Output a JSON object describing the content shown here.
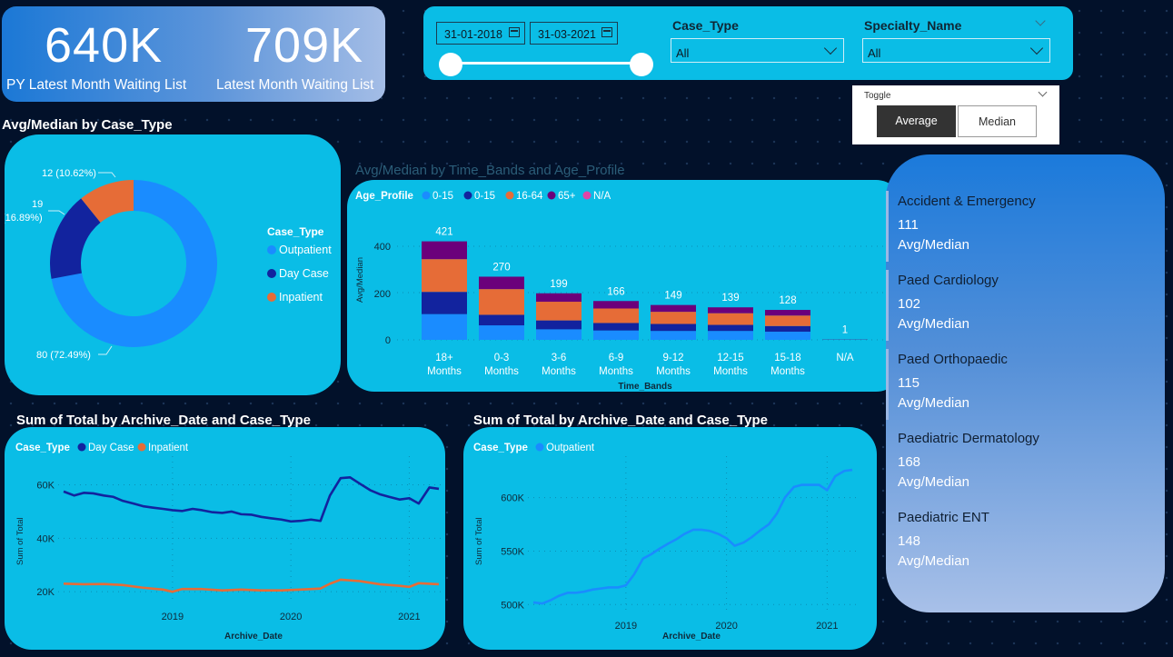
{
  "kpi": {
    "py_value": "640K",
    "py_label": "PY Latest Month Waiting List",
    "latest_value": "709K",
    "latest_label": "Latest Month Waiting List"
  },
  "filters": {
    "date_start": "31-01-2018",
    "date_end": "31-03-2021",
    "case_type_title": "Case_Type",
    "case_type_value": "All",
    "specialty_title": "Specialty_Name",
    "specialty_value": "All"
  },
  "toggle": {
    "title": "Toggle",
    "average": "Average",
    "median": "Median",
    "selected": "Average"
  },
  "colors": {
    "outpatient": "#1a8cff",
    "day_case": "#12239e",
    "inpatient": "#e66c37",
    "age_65": "#6b007b",
    "age_na": "#e044a7",
    "card": "#0abde6"
  },
  "donut": {
    "title": "Avg/Median by Case_Type",
    "legend_title": "Case_Type",
    "legend": [
      "Outpatient",
      "Day Case",
      "Inpatient"
    ],
    "labels": {
      "inpatient": "12 (10.62%)",
      "day_case_value": "19",
      "day_case_pct": "(16.89%)",
      "outpatient": "80 (72.49%)"
    }
  },
  "bar": {
    "title": "Avg/Median by Time_Bands and Age_Profile",
    "legend_title": "Age_Profile",
    "legend": [
      "0-15",
      "0-15",
      "16-64",
      "65+",
      "N/A"
    ],
    "ylabel": "Avg/Median",
    "xlabel": "Time_Bands",
    "yticks": [
      "0",
      "200",
      "400"
    ]
  },
  "line1": {
    "title": "Sum of Total by Archive_Date and Case_Type",
    "legend_title": "Case_Type",
    "legend": [
      "Day Case",
      "Inpatient"
    ],
    "ylabel": "Sum of Total",
    "xlabel": "Archive_Date",
    "yticks": [
      "20K",
      "40K",
      "60K"
    ],
    "xticks": [
      "2019",
      "2020",
      "2021"
    ]
  },
  "line2": {
    "title": "Sum of Total by Archive_Date and Case_Type",
    "legend_title": "Case_Type",
    "legend": [
      "Outpatient"
    ],
    "ylabel": "Sum of Total",
    "xlabel": "Archive_Date",
    "yticks": [
      "500K",
      "550K",
      "600K"
    ],
    "xticks": [
      "2019",
      "2020",
      "2021"
    ]
  },
  "specialties": [
    {
      "name": "Accident & Emergency",
      "value": "111",
      "sub": "Avg/Median"
    },
    {
      "name": "Paed Cardiology",
      "value": "102",
      "sub": "Avg/Median"
    },
    {
      "name": "Paed Orthopaedic",
      "value": "115",
      "sub": "Avg/Median"
    },
    {
      "name": "Paediatric Dermatology",
      "value": "168",
      "sub": "Avg/Median"
    },
    {
      "name": "Paediatric ENT",
      "value": "148",
      "sub": "Avg/Median"
    }
  ],
  "chart_data": [
    {
      "type": "pie",
      "title": "Avg/Median by Case_Type",
      "categories": [
        "Outpatient",
        "Day Case",
        "Inpatient"
      ],
      "values": [
        80,
        19,
        12
      ],
      "percent": [
        72.49,
        16.89,
        10.62
      ]
    },
    {
      "type": "bar",
      "title": "Avg/Median by Time_Bands and Age_Profile",
      "categories": [
        "18+\nMonths",
        "0-3\nMonths",
        "3-6\nMonths",
        "6-9\nMonths",
        "9-12\nMonths",
        "12-15\nMonths",
        "15-18\nMonths",
        "N/A"
      ],
      "totals": [
        421,
        270,
        199,
        166,
        149,
        139,
        128,
        1
      ],
      "series": [
        {
          "name": "0-15",
          "values": [
            110,
            62,
            45,
            40,
            38,
            38,
            35,
            0
          ]
        },
        {
          "name": "0-15",
          "values": [
            95,
            45,
            38,
            32,
            30,
            26,
            24,
            0
          ]
        },
        {
          "name": "16-64",
          "values": [
            140,
            110,
            80,
            62,
            52,
            50,
            45,
            0
          ]
        },
        {
          "name": "65+",
          "values": [
            76,
            53,
            36,
            32,
            29,
            25,
            24,
            1
          ]
        }
      ],
      "ylim": [
        0,
        450
      ]
    },
    {
      "type": "line",
      "title": "Sum of Total by Archive_Date and Case_Type",
      "ylim": [
        17000,
        68000
      ],
      "xlim": [
        2018.08,
        2021.25
      ],
      "series": [
        {
          "name": "Day Case",
          "x": [
            2018.08,
            2018.17,
            2018.25,
            2018.33,
            2018.42,
            2018.5,
            2018.58,
            2018.67,
            2018.75,
            2018.83,
            2018.92,
            2019.0,
            2019.08,
            2019.17,
            2019.25,
            2019.33,
            2019.42,
            2019.5,
            2019.58,
            2019.67,
            2019.75,
            2019.83,
            2019.92,
            2020.0,
            2020.08,
            2020.17,
            2020.25,
            2020.33,
            2020.42,
            2020.5,
            2020.58,
            2020.67,
            2020.75,
            2020.83,
            2020.92,
            2021.0,
            2021.08,
            2021.17,
            2021.25
          ],
          "y": [
            57500,
            56000,
            57000,
            56800,
            56000,
            55500,
            54000,
            53000,
            52000,
            51500,
            51000,
            50500,
            50200,
            51000,
            50500,
            49800,
            49500,
            50000,
            49000,
            48800,
            48000,
            47500,
            47000,
            46300,
            46500,
            47000,
            46500,
            56000,
            62500,
            62800,
            60500,
            58000,
            56500,
            55500,
            54500,
            55000,
            53000,
            59000,
            58500
          ]
        },
        {
          "name": "Inpatient",
          "x": [
            2018.08,
            2018.25,
            2018.42,
            2018.58,
            2018.75,
            2018.92,
            2019.0,
            2019.08,
            2019.25,
            2019.42,
            2019.58,
            2019.75,
            2019.92,
            2020.08,
            2020.25,
            2020.33,
            2020.42,
            2020.58,
            2020.75,
            2020.92,
            2021.0,
            2021.08,
            2021.25
          ],
          "y": [
            23000,
            22800,
            22900,
            22500,
            21500,
            20800,
            20000,
            21000,
            21000,
            20500,
            20800,
            20500,
            20500,
            20800,
            21200,
            23000,
            24500,
            24000,
            22800,
            22200,
            21800,
            23200,
            22800
          ]
        }
      ],
      "yticks": [
        20000,
        40000,
        60000
      ],
      "xticks": [
        2019,
        2020,
        2021
      ]
    },
    {
      "type": "line",
      "title": "Sum of Total by Archive_Date and Case_Type",
      "ylim": [
        496000,
        632000
      ],
      "xlim": [
        2018.08,
        2021.25
      ],
      "series": [
        {
          "name": "Outpatient",
          "x": [
            2018.08,
            2018.17,
            2018.25,
            2018.33,
            2018.42,
            2018.5,
            2018.58,
            2018.67,
            2018.75,
            2018.83,
            2018.92,
            2019.0,
            2019.08,
            2019.17,
            2019.25,
            2019.33,
            2019.42,
            2019.5,
            2019.58,
            2019.67,
            2019.75,
            2019.83,
            2019.92,
            2020.0,
            2020.08,
            2020.17,
            2020.25,
            2020.33,
            2020.42,
            2020.5,
            2020.58,
            2020.67,
            2020.75,
            2020.83,
            2020.92,
            2021.0,
            2021.08,
            2021.17,
            2021.25
          ],
          "y": [
            502000,
            501000,
            504000,
            508000,
            511000,
            511000,
            512000,
            514000,
            515000,
            516000,
            516000,
            518000,
            528000,
            543000,
            547000,
            552000,
            557000,
            561000,
            566000,
            570000,
            570000,
            569000,
            566000,
            562000,
            555000,
            558000,
            563000,
            569000,
            575000,
            585000,
            600000,
            610000,
            612000,
            612000,
            612000,
            607000,
            620000,
            625000,
            626000
          ]
        }
      ],
      "yticks": [
        500000,
        550000,
        600000
      ],
      "xticks": [
        2019,
        2020,
        2021
      ]
    }
  ]
}
